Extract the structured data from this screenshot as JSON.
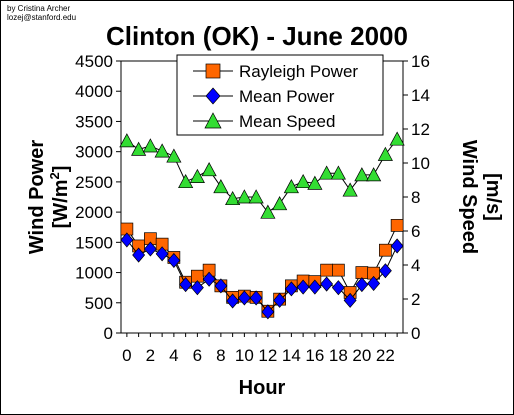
{
  "credit": {
    "line1": "by Cristina Archer",
    "line2": "lozej@stanford.edu"
  },
  "chart_data": {
    "type": "line",
    "title": "Clinton (OK) - June 2000",
    "xlabel": "Hour",
    "ylabel_left": {
      "main": "Wind Power",
      "unit_prefix": "[W/m",
      "unit_sup": "2",
      "unit_suffix": "]"
    },
    "ylabel_right": {
      "main": "Wind Speed",
      "unit": "[m/s]"
    },
    "x": [
      0,
      1,
      2,
      3,
      4,
      5,
      6,
      7,
      8,
      9,
      10,
      11,
      12,
      13,
      14,
      15,
      16,
      17,
      18,
      19,
      20,
      21,
      22,
      23
    ],
    "x_ticks": [
      0,
      2,
      4,
      6,
      8,
      10,
      12,
      14,
      16,
      18,
      20,
      22
    ],
    "x_tick_labels": [
      "0",
      "2",
      "4",
      "6",
      "8",
      "10",
      "12",
      "14",
      "16",
      "18",
      "20",
      "22"
    ],
    "xlim": [
      -0.5,
      23.5
    ],
    "ylim_left": [
      0,
      4500
    ],
    "yticks_left": [
      0,
      500,
      1000,
      1500,
      2000,
      2500,
      3000,
      3500,
      4000,
      4500
    ],
    "ylim_right": [
      0,
      16
    ],
    "yticks_right": [
      0,
      2,
      4,
      6,
      8,
      10,
      12,
      14,
      16
    ],
    "grid": false,
    "legend_position": "top-center",
    "series": [
      {
        "name": "Rayleigh Power",
        "axis": "left",
        "marker": "square",
        "color": "#ff6600",
        "values": [
          1720,
          1440,
          1560,
          1470,
          1250,
          840,
          940,
          1040,
          780,
          590,
          610,
          590,
          360,
          560,
          780,
          860,
          850,
          1040,
          1040,
          670,
          1000,
          990,
          1370,
          1780
        ]
      },
      {
        "name": "Mean Power",
        "axis": "left",
        "marker": "diamond",
        "color": "#0000ff",
        "values": [
          1540,
          1290,
          1390,
          1310,
          1200,
          800,
          750,
          890,
          780,
          530,
          580,
          580,
          350,
          540,
          730,
          760,
          760,
          810,
          750,
          540,
          800,
          820,
          1030,
          1440
        ]
      },
      {
        "name": "Mean Speed",
        "axis": "right",
        "marker": "triangle",
        "color": "#33dd33",
        "values": [
          11.3,
          10.8,
          11.0,
          10.7,
          10.4,
          8.9,
          9.2,
          9.6,
          8.6,
          7.9,
          8.0,
          8.0,
          7.1,
          7.6,
          8.6,
          8.9,
          8.8,
          9.4,
          9.4,
          8.4,
          9.3,
          9.3,
          10.5,
          11.4
        ]
      }
    ]
  }
}
